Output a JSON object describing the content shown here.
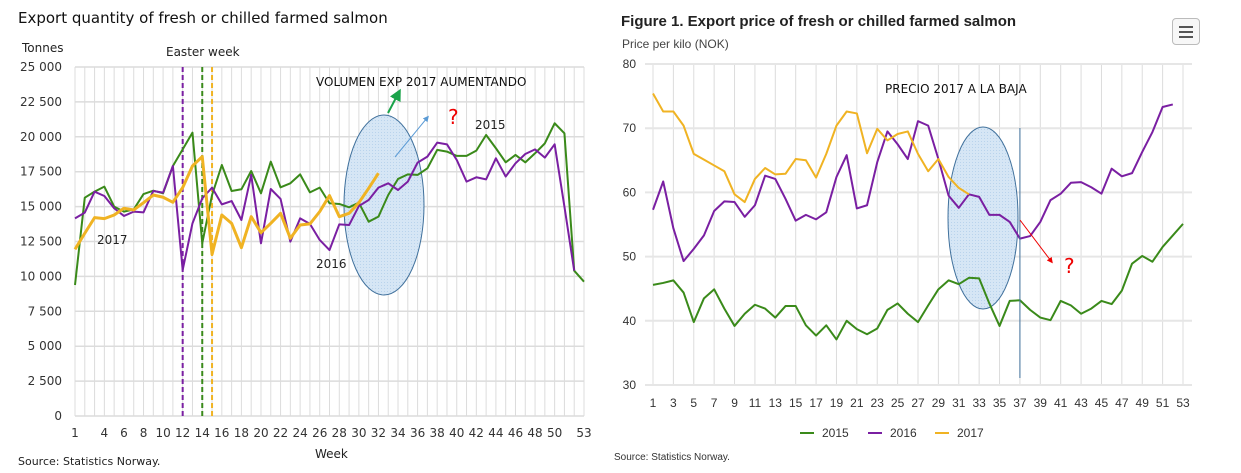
{
  "left_chart": {
    "title": "Export quantity of fresh or chilled farmed salmon",
    "unit_label": "Tonnes",
    "easter_label": "Easter week",
    "xlabel": "Week",
    "source": "Source: Statistics Norway.",
    "annotation": "VOLUMEN EXP 2017 AUMENTANDO",
    "question_mark": "?"
  },
  "right_chart": {
    "title": "Figure 1. Export price of fresh or chilled farmed salmon",
    "subtitle": "Price per kilo (NOK)",
    "source": "Source: Statistics Norway.",
    "annotation": "PRECIO 2017 A LA BAJA",
    "question_mark": "?",
    "menu_icon": "hamburger-menu-icon"
  },
  "chart_data": [
    {
      "type": "line",
      "title": "Export quantity of fresh or chilled farmed salmon",
      "xlabel": "Week",
      "ylabel": "Tonnes",
      "xlim": [
        1,
        53
      ],
      "ylim": [
        0,
        25000
      ],
      "y_ticks": [
        "0",
        "2 500",
        "5 000",
        "7 500",
        "10 000",
        "12 500",
        "15 000",
        "17 500",
        "20 000",
        "22 500",
        "25 000"
      ],
      "x_ticks": [
        "1",
        "4",
        "6",
        "8",
        "10",
        "12",
        "14",
        "16",
        "18",
        "20",
        "22",
        "24",
        "26",
        "28",
        "30",
        "32",
        "34",
        "36",
        "38",
        "40",
        "42",
        "44",
        "46",
        "48",
        "50",
        "53"
      ],
      "grid": true,
      "legend": "inline labels",
      "easter_weeks": [
        {
          "year": "2016",
          "week": 12,
          "color": "#7a1fa2"
        },
        {
          "year": "2015",
          "week": 14,
          "color": "#3a8a1a"
        },
        {
          "year": "2017",
          "week": 15,
          "color": "#f0b323"
        }
      ],
      "series": [
        {
          "name": "2015",
          "color": "#3a8a1a",
          "values": [
            9385,
            15640,
            16070,
            16430,
            15000,
            14640,
            14800,
            15900,
            16140,
            15950,
            17910,
            19100,
            20300,
            12370,
            15830,
            17980,
            16120,
            16240,
            17550,
            15950,
            18220,
            16380,
            16670,
            17310,
            16020,
            16360,
            15240,
            15190,
            14950,
            15280,
            13920,
            14280,
            15830,
            16980,
            17310,
            17270,
            17740,
            19060,
            18940,
            18630,
            18630,
            19010,
            20130,
            19180,
            18170,
            18700,
            18170,
            18820,
            19530,
            20970,
            20250,
            10410,
            9620
          ]
        },
        {
          "name": "2016",
          "color": "#7a1fa2",
          "values": [
            14160,
            14570,
            16070,
            15760,
            14880,
            14330,
            14640,
            14590,
            16120,
            16000,
            17910,
            10460,
            13800,
            15590,
            16360,
            15160,
            15400,
            14040,
            17270,
            12370,
            16260,
            15550,
            12490,
            14160,
            13760,
            12610,
            11890,
            13730,
            13680,
            15040,
            15470,
            16360,
            16670,
            16190,
            16790,
            18150,
            18580,
            19580,
            19460,
            18340,
            16790,
            17100,
            16950,
            18460,
            17150,
            18100,
            18770,
            19100,
            18510,
            19460,
            15000,
            10410
          ]
        },
        {
          "name": "2017",
          "color": "#f0b323",
          "values": [
            11940,
            13090,
            14210,
            14140,
            14400,
            14880,
            14760,
            15280,
            15830,
            15670,
            15310,
            16360,
            17910,
            18580,
            11580,
            14400,
            13800,
            12060,
            14280,
            13130,
            13800,
            14520,
            12730,
            13680,
            13760,
            14640,
            15790,
            14280,
            14520,
            15280,
            16310,
            17390
          ]
        }
      ]
    },
    {
      "type": "line",
      "title": "Figure 1. Export price of fresh or chilled farmed salmon",
      "ylabel": "Price per kilo (NOK)",
      "xlim": [
        1,
        53
      ],
      "ylim": [
        30,
        80
      ],
      "y_ticks": [
        "30",
        "40",
        "50",
        "60",
        "70",
        "80"
      ],
      "x_ticks": [
        "1",
        "3",
        "5",
        "7",
        "9",
        "11",
        "13",
        "15",
        "17",
        "19",
        "21",
        "23",
        "25",
        "27",
        "29",
        "31",
        "33",
        "35",
        "37",
        "39",
        "41",
        "43",
        "45",
        "47",
        "49",
        "51",
        "53"
      ],
      "grid": true,
      "legend": "bottom",
      "marker_week": 37,
      "series": [
        {
          "name": "2015",
          "color": "#3a8a1a",
          "values": [
            45.6,
            45.9,
            46.3,
            44.4,
            39.8,
            43.5,
            44.9,
            41.9,
            39.2,
            41.1,
            42.5,
            41.9,
            40.5,
            42.3,
            42.3,
            39.3,
            37.7,
            39.3,
            37.1,
            40.0,
            38.7,
            37.9,
            38.8,
            41.7,
            42.7,
            41.1,
            39.8,
            42.4,
            44.9,
            46.3,
            45.7,
            46.7,
            46.6,
            42.7,
            39.2,
            43.1,
            43.2,
            41.7,
            40.5,
            40.1,
            43.1,
            42.4,
            41.1,
            41.9,
            43.1,
            42.6,
            44.7,
            48.9,
            50.1,
            49.2,
            51.5,
            53.3,
            55.1
          ]
        },
        {
          "name": "2016",
          "color": "#7a1fa2",
          "values": [
            57.3,
            61.7,
            54.4,
            49.3,
            51.2,
            53.3,
            57.1,
            58.6,
            58.5,
            56.2,
            58.0,
            62.6,
            62.1,
            59.0,
            55.6,
            56.5,
            55.8,
            56.9,
            62.4,
            65.8,
            57.5,
            58.0,
            64.7,
            69.5,
            67.5,
            65.2,
            71.1,
            70.4,
            65.2,
            59.5,
            57.6,
            59.7,
            59.3,
            56.5,
            56.5,
            55.4,
            52.8,
            53.2,
            55.4,
            58.8,
            59.8,
            61.5,
            61.6,
            60.8,
            59.8,
            63.7,
            62.5,
            63.0,
            66.3,
            69.4,
            73.3,
            73.7
          ]
        },
        {
          "name": "2017",
          "color": "#f0b323",
          "values": [
            75.4,
            72.6,
            72.6,
            70.4,
            66.0,
            65.1,
            64.2,
            63.3,
            59.7,
            58.5,
            62.1,
            63.8,
            62.8,
            62.9,
            65.2,
            65.0,
            62.3,
            66.0,
            70.4,
            72.6,
            72.3,
            66.1,
            69.9,
            68.1,
            69.1,
            69.5,
            66.0,
            63.3,
            65.2,
            62.4,
            60.7,
            59.7
          ]
        }
      ]
    }
  ]
}
